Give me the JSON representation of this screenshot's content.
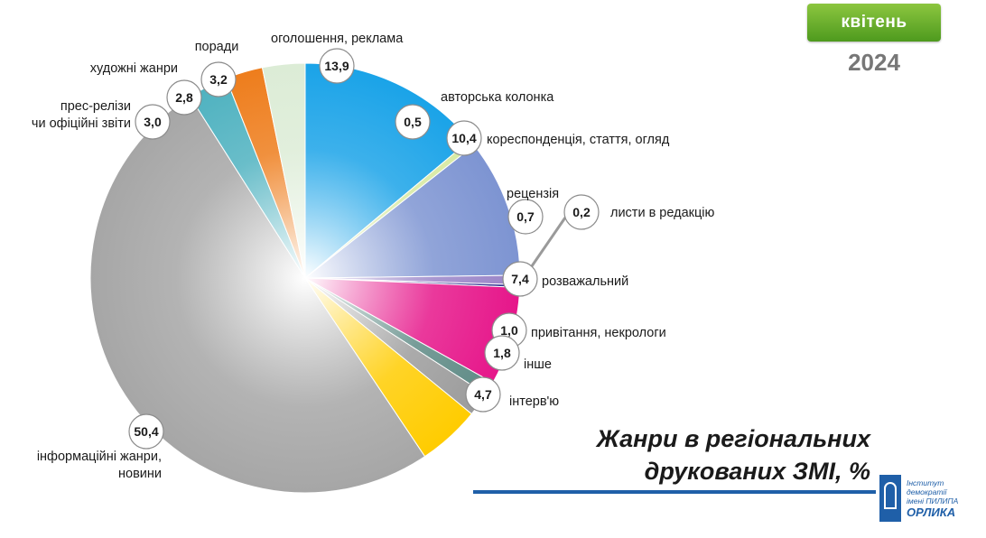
{
  "badge": {
    "month": "квітень",
    "year": "2024"
  },
  "title_lines": [
    "Жанри в регіональних",
    "друкованих ЗМІ, %"
  ],
  "logo": {
    "line1": "Інститут демократії",
    "line2": "імені ПИЛИПА",
    "line3": "ОРЛИКА"
  },
  "chart_data": {
    "type": "pie",
    "title": "Жанри в регіональних друкованих ЗМІ, %",
    "legend": "none",
    "slices": [
      {
        "label": [
          "оголошення, реклама"
        ],
        "value": 13.9,
        "display": "13,9",
        "color": "#1aa3e8"
      },
      {
        "label": [
          "авторська колонка"
        ],
        "value": 0.5,
        "display": "0,5",
        "color": "#d7e9a2"
      },
      {
        "label": [
          "кореспонденція, стаття, огляд"
        ],
        "value": 10.4,
        "display": "10,4",
        "color": "#7d94d2"
      },
      {
        "label": [
          "рецензія"
        ],
        "value": 0.7,
        "display": "0,7",
        "color": "#9a85c8"
      },
      {
        "label": [
          "листи в редакцію"
        ],
        "value": 0.2,
        "display": "0,2",
        "color": "#2b2f8f"
      },
      {
        "label": [
          "розважальний"
        ],
        "value": 7.4,
        "display": "7,4",
        "color": "#e6168a"
      },
      {
        "label": [
          "привітання, некрологи"
        ],
        "value": 1.0,
        "display": "1,0",
        "color": "#5f8b86"
      },
      {
        "label": [
          "інше"
        ],
        "value": 1.8,
        "display": "1,8",
        "color": "#9c9c9c"
      },
      {
        "label": [
          "інтерв'ю"
        ],
        "value": 4.7,
        "display": "4,7",
        "color": "#ffcc00"
      },
      {
        "label": [
          "інформаційні жанри,",
          "новини"
        ],
        "value": 50.4,
        "display": "50,4",
        "color": "#a6a6a6"
      },
      {
        "label": [
          "прес-релізи",
          "чи офіційні звіти"
        ],
        "value": 3.0,
        "display": "3,0",
        "color": "#4fb2c0"
      },
      {
        "label": [
          "художні жанри"
        ],
        "value": 2.8,
        "display": "2,8",
        "color": "#ee7d1c"
      },
      {
        "label": [
          "поради"
        ],
        "value": 3.2,
        "display": "3,2",
        "color": "#dcecd6"
      }
    ]
  }
}
